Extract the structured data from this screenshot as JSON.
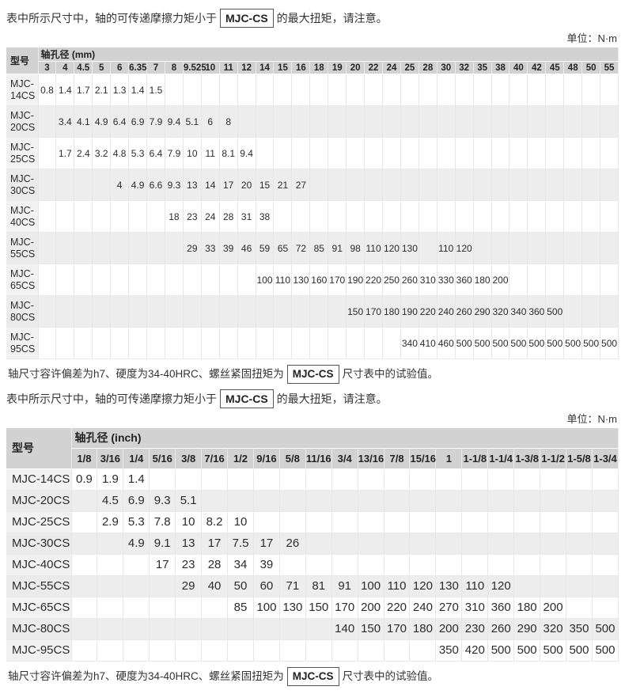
{
  "unit_label": "单位：N·m",
  "notes": {
    "mjc_cs": "MJC-CS",
    "friction_pre": "表中所示尺寸中，轴的可传递摩擦力矩小于",
    "friction_post": "的最大扭矩，请注意。",
    "tolerance_pre": "轴尺寸容许偏差为h7、硬度为34-40HRC、螺丝紧固扭矩为",
    "tolerance_post": "尺寸表中的试验值。"
  },
  "table_mm": {
    "model_header": "型号",
    "bore_header": "轴孔径 (mm)",
    "columns": [
      "3",
      "4",
      "4.5",
      "5",
      "6",
      "6.35",
      "7",
      "8",
      "9.525",
      "10",
      "11",
      "12",
      "14",
      "15",
      "16",
      "18",
      "19",
      "20",
      "22",
      "24",
      "25",
      "28",
      "30",
      "32",
      "35",
      "38",
      "40",
      "42",
      "45",
      "48",
      "50",
      "55"
    ],
    "rows": [
      {
        "model": "MJC-14CS",
        "values": [
          "0.8",
          "1.4",
          "1.7",
          "2.1",
          "1.3",
          "1.4",
          "1.5",
          "",
          "",
          "",
          "",
          "",
          "",
          "",
          "",
          "",
          "",
          "",
          "",
          "",
          "",
          "",
          "",
          "",
          "",
          "",
          "",
          "",
          "",
          "",
          "",
          ""
        ]
      },
      {
        "model": "MJC-20CS",
        "values": [
          "",
          "3.4",
          "4.1",
          "4.9",
          "6.4",
          "6.9",
          "7.9",
          "9.4",
          "5.1",
          "6",
          "8",
          "",
          "",
          "",
          "",
          "",
          "",
          "",
          "",
          "",
          "",
          "",
          "",
          "",
          "",
          "",
          "",
          "",
          "",
          "",
          "",
          ""
        ]
      },
      {
        "model": "MJC-25CS",
        "values": [
          "",
          "1.7",
          "2.4",
          "3.2",
          "4.8",
          "5.3",
          "6.4",
          "7.9",
          "10",
          "11",
          "8.1",
          "9.4",
          "",
          "",
          "",
          "",
          "",
          "",
          "",
          "",
          "",
          "",
          "",
          "",
          "",
          "",
          "",
          "",
          "",
          "",
          "",
          ""
        ]
      },
      {
        "model": "MJC-30CS",
        "values": [
          "",
          "",
          "",
          "",
          "4",
          "4.9",
          "6.6",
          "9.3",
          "13",
          "14",
          "17",
          "20",
          "15",
          "21",
          "27",
          "",
          "",
          "",
          "",
          "",
          "",
          "",
          "",
          "",
          "",
          "",
          "",
          "",
          "",
          "",
          "",
          ""
        ]
      },
      {
        "model": "MJC-40CS",
        "values": [
          "",
          "",
          "",
          "",
          "",
          "",
          "",
          "18",
          "23",
          "24",
          "28",
          "31",
          "38",
          "",
          "",
          "",
          "",
          "",
          "",
          "",
          "",
          "",
          "",
          "",
          "",
          "",
          "",
          "",
          "",
          "",
          "",
          ""
        ]
      },
      {
        "model": "MJC-55CS",
        "values": [
          "",
          "",
          "",
          "",
          "",
          "",
          "",
          "",
          "29",
          "33",
          "39",
          "46",
          "59",
          "65",
          "72",
          "85",
          "91",
          "98",
          "110",
          "120",
          "130",
          "",
          "110",
          "120",
          "",
          "",
          "",
          "",
          "",
          "",
          "",
          ""
        ]
      },
      {
        "model": "MJC-65CS",
        "values": [
          "",
          "",
          "",
          "",
          "",
          "",
          "",
          "",
          "",
          "",
          "",
          "",
          "100",
          "110",
          "130",
          "160",
          "170",
          "190",
          "220",
          "250",
          "260",
          "310",
          "330",
          "360",
          "180",
          "200",
          "",
          "",
          "",
          "",
          "",
          ""
        ]
      },
      {
        "model": "MJC-80CS",
        "values": [
          "",
          "",
          "",
          "",
          "",
          "",
          "",
          "",
          "",
          "",
          "",
          "",
          "",
          "",
          "",
          "",
          "",
          "150",
          "170",
          "180",
          "190",
          "220",
          "240",
          "260",
          "290",
          "320",
          "340",
          "360",
          "500",
          "",
          "",
          ""
        ]
      },
      {
        "model": "MJC-95CS",
        "values": [
          "",
          "",
          "",
          "",
          "",
          "",
          "",
          "",
          "",
          "",
          "",
          "",
          "",
          "",
          "",
          "",
          "",
          "",
          "",
          "",
          "340",
          "410",
          "460",
          "500",
          "500",
          "500",
          "500",
          "500",
          "500",
          "500",
          "500",
          "500"
        ]
      }
    ]
  },
  "table_inch": {
    "model_header": "型号",
    "bore_header": "轴孔径 (inch)",
    "columns": [
      "1/8",
      "3/16",
      "1/4",
      "5/16",
      "3/8",
      "7/16",
      "1/2",
      "9/16",
      "5/8",
      "11/16",
      "3/4",
      "13/16",
      "7/8",
      "15/16",
      "1",
      "1-1/8",
      "1-1/4",
      "1-3/8",
      "1-1/2",
      "1-5/8",
      "1-3/4"
    ],
    "rows": [
      {
        "model": "MJC-14CS",
        "values": [
          "0.9",
          "1.9",
          "1.4",
          "",
          "",
          "",
          "",
          "",
          "",
          "",
          "",
          "",
          "",
          "",
          "",
          "",
          "",
          "",
          "",
          "",
          ""
        ]
      },
      {
        "model": "MJC-20CS",
        "values": [
          "",
          "4.5",
          "6.9",
          "9.3",
          "5.1",
          "",
          "",
          "",
          "",
          "",
          "",
          "",
          "",
          "",
          "",
          "",
          "",
          "",
          "",
          "",
          ""
        ]
      },
      {
        "model": "MJC-25CS",
        "values": [
          "",
          "2.9",
          "5.3",
          "7.8",
          "10",
          "8.2",
          "10",
          "",
          "",
          "",
          "",
          "",
          "",
          "",
          "",
          "",
          "",
          "",
          "",
          "",
          ""
        ]
      },
      {
        "model": "MJC-30CS",
        "values": [
          "",
          "",
          "4.9",
          "9.1",
          "13",
          "17",
          "7.5",
          "17",
          "26",
          "",
          "",
          "",
          "",
          "",
          "",
          "",
          "",
          "",
          "",
          "",
          ""
        ]
      },
      {
        "model": "MJC-40CS",
        "values": [
          "",
          "",
          "",
          "17",
          "23",
          "28",
          "34",
          "39",
          "",
          "",
          "",
          "",
          "",
          "",
          "",
          "",
          "",
          "",
          "",
          "",
          ""
        ]
      },
      {
        "model": "MJC-55CS",
        "values": [
          "",
          "",
          "",
          "",
          "29",
          "40",
          "50",
          "60",
          "71",
          "81",
          "91",
          "100",
          "110",
          "120",
          "130",
          "110",
          "120",
          "",
          "",
          "",
          ""
        ]
      },
      {
        "model": "MJC-65CS",
        "values": [
          "",
          "",
          "",
          "",
          "",
          "",
          "85",
          "100",
          "130",
          "150",
          "170",
          "200",
          "220",
          "240",
          "270",
          "310",
          "360",
          "180",
          "200",
          "",
          ""
        ]
      },
      {
        "model": "MJC-80CS",
        "values": [
          "",
          "",
          "",
          "",
          "",
          "",
          "",
          "",
          "",
          "",
          "140",
          "150",
          "170",
          "180",
          "200",
          "230",
          "260",
          "290",
          "320",
          "350",
          "500"
        ]
      },
      {
        "model": "MJC-95CS",
        "values": [
          "",
          "",
          "",
          "",
          "",
          "",
          "",
          "",
          "",
          "",
          "",
          "",
          "",
          "",
          "350",
          "420",
          "500",
          "500",
          "500",
          "500",
          "500"
        ]
      }
    ]
  }
}
